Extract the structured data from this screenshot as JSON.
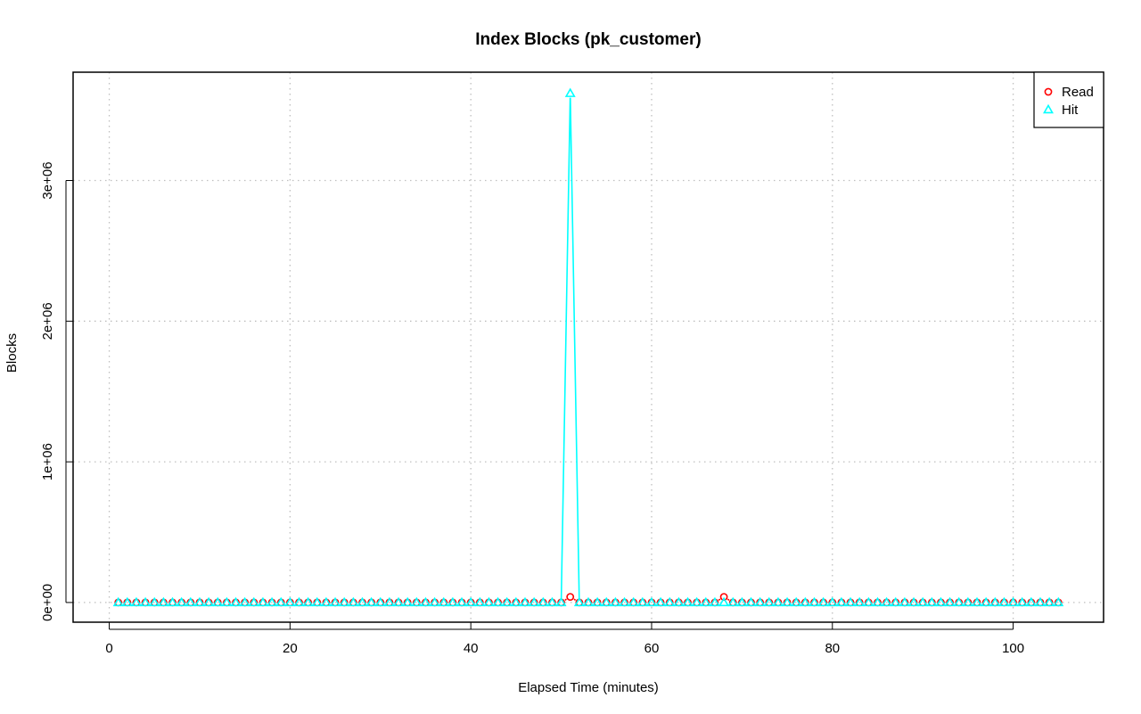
{
  "chart_data": {
    "type": "line",
    "title": "Index Blocks (pk_customer)",
    "xlabel": "Elapsed Time (minutes)",
    "ylabel": "Blocks",
    "xlim": [
      -4,
      110
    ],
    "ylim": [
      -140000,
      3770000
    ],
    "xticks": [
      0,
      20,
      40,
      60,
      80,
      100
    ],
    "yticks": [
      0,
      1000000,
      2000000,
      3000000
    ],
    "xtick_labels": [
      "0",
      "20",
      "40",
      "60",
      "80",
      "100"
    ],
    "ytick_labels": [
      "0e+00",
      "1e+06",
      "2e+06",
      "3e+06"
    ],
    "grid": true,
    "legend_position": "top-right",
    "x_start": 1,
    "x_end": 105,
    "series": [
      {
        "name": "Read",
        "color": "#ff0000",
        "marker": "circle",
        "baseline": 0,
        "overrides": {
          "51": 40000,
          "68": 40000
        }
      },
      {
        "name": "Hit",
        "color": "#00ffff",
        "marker": "triangle",
        "baseline": 0,
        "overrides": {
          "51": 3620000
        }
      }
    ]
  }
}
